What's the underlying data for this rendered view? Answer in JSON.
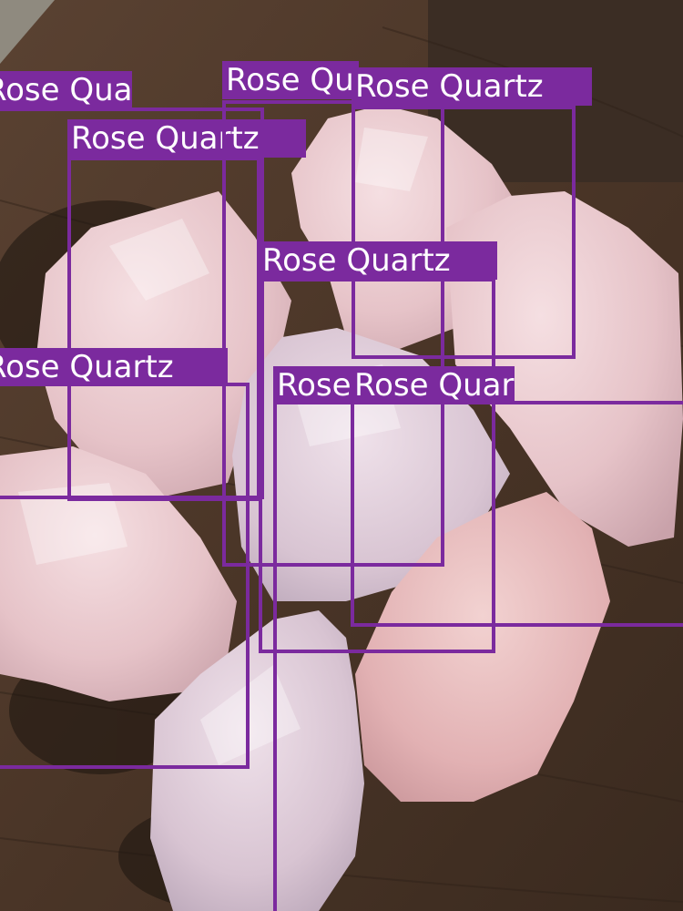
{
  "image": {
    "subject": "rough rose quartz stones on a wooden board",
    "stone_color": "#e9c9cc",
    "wood_color": "#4a3527"
  },
  "detection_style": {
    "box_color": "#7b2a9e",
    "label_text_color": "#ffffff"
  },
  "detections": [
    {
      "label": "Rose Quartz"
    },
    {
      "label": "Rose Quartz"
    },
    {
      "label": "Rose Quartz"
    },
    {
      "label": "Rose Quartz"
    },
    {
      "label": "Rose Quartz"
    },
    {
      "label": "Rose Quartz"
    },
    {
      "label": "Rose Quartz"
    },
    {
      "label": "Rose Quartz"
    }
  ]
}
